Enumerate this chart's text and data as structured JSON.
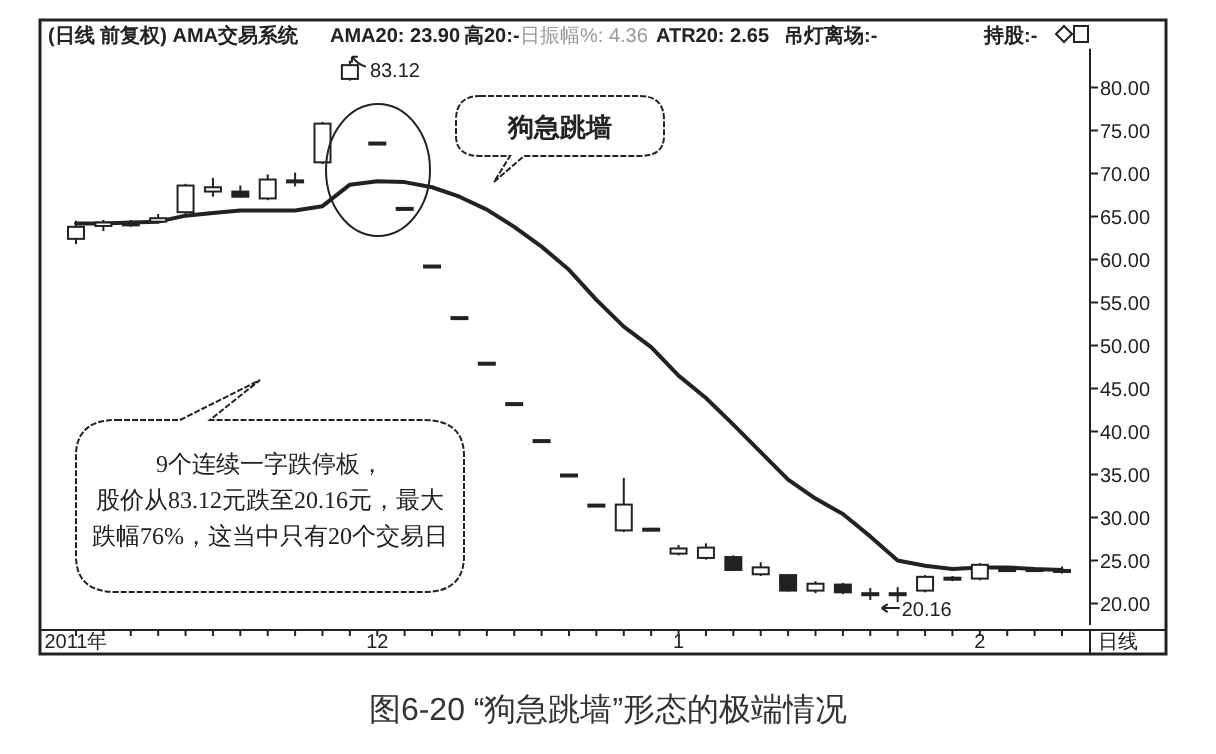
{
  "chart_data": {
    "type": "candlestick",
    "title": "(日线 前复权) AMA交易系统",
    "categories": [
      "2011年",
      null,
      null,
      null,
      null,
      null,
      null,
      null,
      null,
      null,
      null,
      "12",
      null,
      null,
      null,
      null,
      null,
      null,
      null,
      null,
      null,
      null,
      "1",
      null,
      null,
      null,
      null,
      null,
      null,
      null,
      null,
      null,
      null,
      "2",
      null,
      null,
      null
    ],
    "ohlc": [
      [
        62.4,
        64.5,
        61.8,
        63.8
      ],
      [
        63.9,
        64.6,
        63.3,
        64.3
      ],
      [
        64.1,
        64.6,
        63.8,
        64.2
      ],
      [
        64.4,
        65.3,
        64.2,
        64.8
      ],
      [
        65.5,
        68.8,
        65.3,
        68.6
      ],
      [
        67.9,
        69.5,
        67.3,
        68.4
      ],
      [
        67.9,
        68.6,
        67.2,
        67.3
      ],
      [
        67.1,
        69.9,
        66.9,
        69.3
      ],
      [
        69.0,
        70.1,
        68.5,
        69.2
      ],
      [
        71.3,
        76.0,
        71.1,
        75.8
      ],
      [
        81.0,
        83.12,
        80.8,
        82.6
      ],
      [
        73.6,
        73.6,
        73.6,
        73.6
      ],
      [
        66.0,
        66.0,
        66.0,
        66.0
      ],
      [
        59.3,
        59.3,
        59.3,
        59.3
      ],
      [
        53.3,
        53.3,
        53.3,
        53.3
      ],
      [
        48.0,
        48.0,
        48.0,
        48.0
      ],
      [
        43.3,
        43.3,
        43.3,
        43.3
      ],
      [
        39.0,
        39.0,
        39.0,
        39.0
      ],
      [
        35.0,
        35.0,
        35.0,
        35.0
      ],
      [
        31.5,
        31.5,
        31.5,
        31.5
      ],
      [
        28.5,
        34.6,
        28.3,
        31.5
      ],
      [
        28.7,
        28.8,
        28.6,
        28.7
      ],
      [
        25.8,
        26.8,
        25.6,
        26.4
      ],
      [
        25.3,
        27.0,
        25.1,
        26.5
      ],
      [
        25.4,
        25.6,
        23.8,
        23.9
      ],
      [
        23.4,
        24.8,
        23.2,
        24.2
      ],
      [
        23.3,
        23.4,
        21.4,
        21.5
      ],
      [
        21.5,
        22.6,
        21.2,
        22.3
      ],
      [
        22.2,
        22.4,
        21.1,
        21.3
      ],
      [
        21.1,
        21.8,
        20.4,
        21.2
      ],
      [
        21.2,
        21.9,
        20.16,
        21.0
      ],
      [
        21.5,
        23.3,
        21.3,
        23.1
      ],
      [
        22.8,
        23.2,
        22.6,
        23.0
      ],
      [
        22.9,
        24.7,
        22.7,
        24.5
      ],
      [
        23.9,
        24.2,
        23.8,
        24.0
      ],
      [
        23.9,
        24.2,
        23.8,
        24.0
      ],
      [
        23.8,
        24.3,
        23.5,
        23.9
      ]
    ],
    "series": [
      {
        "type": "line",
        "color": "#222222",
        "values": [
          64.2,
          64.2,
          64.3,
          64.4,
          65.1,
          65.4,
          65.7,
          65.7,
          65.7,
          66.2,
          68.7,
          69.1,
          69.0,
          68.4,
          67.3,
          65.8,
          63.8,
          61.5,
          58.8,
          55.3,
          52.2,
          49.8,
          46.5,
          43.9,
          40.8,
          37.6,
          34.4,
          32.2,
          30.4,
          27.8,
          25.0,
          24.4,
          24.0,
          24.2,
          24.2,
          24.0,
          23.9
        ]
      }
    ],
    "ylim": [
      17.5,
      84.5
    ],
    "yticks": [
      {
        "value": 20,
        "label": "20.00"
      },
      {
        "value": 25,
        "label": "25.00"
      },
      {
        "value": 30,
        "label": "30.00"
      },
      {
        "value": 35,
        "label": "35.00"
      },
      {
        "value": 40,
        "label": "40.00"
      },
      {
        "value": 45,
        "label": "45.00"
      },
      {
        "value": 50,
        "label": "50.00"
      },
      {
        "value": 55,
        "label": "55.00"
      },
      {
        "value": 60,
        "label": "60.00"
      },
      {
        "value": 65,
        "label": "65.00"
      },
      {
        "value": 70,
        "label": "70.00"
      },
      {
        "value": 75,
        "label": "75.00"
      },
      {
        "value": 80,
        "label": "80.00"
      }
    ],
    "annotations": [
      "AMA20: 23.90",
      "高20:-",
      "日振幅%: 4.36",
      "ATR20: 2.65",
      "吊灯离场:-",
      "持股:-",
      "狗急跳墙",
      "9个连续一字跌停板，",
      "股价从83.12元跌至20.16元，最大",
      "跌幅76%，这当中只有20个交易日",
      "日线",
      "图6-20 “狗急跳墙”形态的极端情况",
      "83.12",
      "20.16"
    ]
  }
}
